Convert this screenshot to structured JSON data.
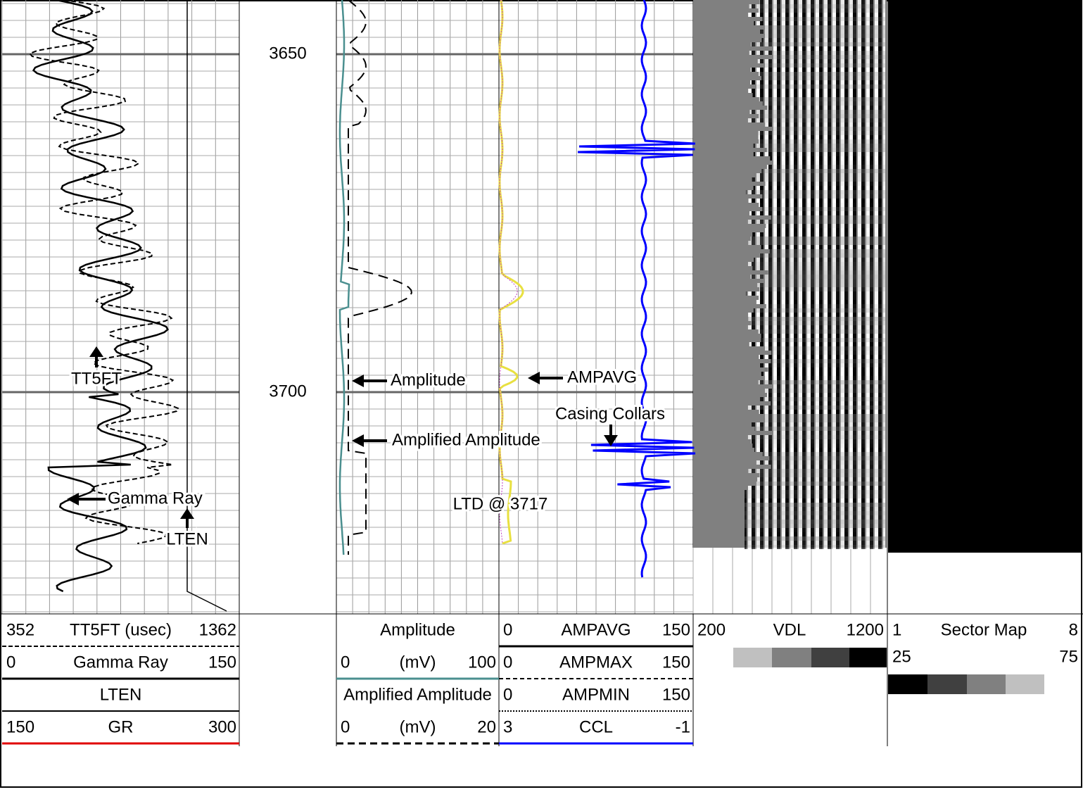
{
  "depth_labels": [
    "3650",
    "3700"
  ],
  "annotations": {
    "tt5ft": "TT5FT",
    "amplitude": "Amplitude",
    "ampavg": "AMPAVG",
    "casing_collars": "Casing Collars",
    "amplified_amplitude": "Amplified Amplitude",
    "gamma_ray": "Gamma Ray",
    "ltd": "LTD @ 3717",
    "lten": "LTEN"
  },
  "headers": {
    "track1": [
      {
        "left": "352",
        "name": "TT5FT (usec)",
        "right": "1362"
      },
      {
        "left": "0",
        "name": "Gamma Ray",
        "right": "150"
      },
      {
        "name": "LTEN"
      },
      {
        "left": "150",
        "name": "GR",
        "right": "300"
      }
    ],
    "track2": [
      {
        "name": "Amplitude"
      },
      {
        "left": "0",
        "name": "(mV)",
        "right": "100"
      },
      {
        "name": "Amplified Amplitude"
      },
      {
        "left": "0",
        "name": "(mV)",
        "right": "20"
      }
    ],
    "track3": [
      {
        "left": "0",
        "name": "AMPAVG",
        "right": "150"
      },
      {
        "left": "0",
        "name": "AMPMAX",
        "right": "150"
      },
      {
        "left": "0",
        "name": "AMPMIN",
        "right": "150"
      },
      {
        "left": "3",
        "name": "CCL",
        "right": "-1"
      }
    ],
    "vdl": {
      "left": "200",
      "name": "VDL",
      "right": "1200"
    },
    "sector": {
      "left": "1",
      "name": "Sector Map",
      "right": "8",
      "left2": "25",
      "right2": "75"
    }
  }
}
